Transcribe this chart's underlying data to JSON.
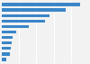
{
  "values": [
    158,
    130,
    96,
    88,
    54,
    29,
    22,
    20,
    18,
    16,
    10
  ],
  "bar_color": "#3a86c8",
  "background_color": "#f2f2f2",
  "chart_bg": "#f2f2f2",
  "grid_color": "#ffffff",
  "xlim": [
    0,
    175
  ]
}
